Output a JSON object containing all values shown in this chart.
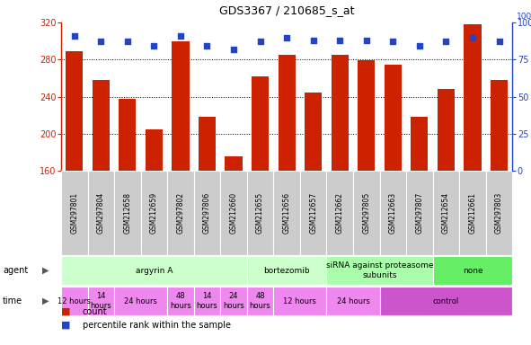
{
  "title": "GDS3367 / 210685_s_at",
  "samples": [
    "GSM297801",
    "GSM297804",
    "GSM212658",
    "GSM212659",
    "GSM297802",
    "GSM297806",
    "GSM212660",
    "GSM212655",
    "GSM212656",
    "GSM212657",
    "GSM212662",
    "GSM297805",
    "GSM212663",
    "GSM297807",
    "GSM212654",
    "GSM212661",
    "GSM297803"
  ],
  "counts": [
    289,
    258,
    238,
    205,
    300,
    218,
    176,
    262,
    285,
    244,
    285,
    279,
    274,
    218,
    248,
    318,
    258
  ],
  "percentiles": [
    91,
    87,
    87,
    84,
    91,
    84,
    82,
    87,
    90,
    88,
    88,
    88,
    87,
    84,
    87,
    90,
    87
  ],
  "ylim_left": [
    160,
    320
  ],
  "ylim_right": [
    0,
    100
  ],
  "yticks_left": [
    160,
    200,
    240,
    280,
    320
  ],
  "yticks_right": [
    0,
    25,
    50,
    75,
    100
  ],
  "bar_color": "#cc2200",
  "dot_color": "#2244cc",
  "agent_groups": [
    {
      "label": "argyrin A",
      "start": 0,
      "end": 6,
      "color": "#ccffcc"
    },
    {
      "label": "bortezomib",
      "start": 7,
      "end": 9,
      "color": "#ccffcc"
    },
    {
      "label": "siRNA against proteasome\nsubunits",
      "start": 10,
      "end": 13,
      "color": "#aaffaa"
    },
    {
      "label": "none",
      "start": 14,
      "end": 16,
      "color": "#66ee66"
    }
  ],
  "time_groups": [
    {
      "label": "12 hours",
      "start": 0,
      "end": 0,
      "color": "#ee88ee"
    },
    {
      "label": "14\nhours",
      "start": 1,
      "end": 1,
      "color": "#ee88ee"
    },
    {
      "label": "24 hours",
      "start": 2,
      "end": 3,
      "color": "#ee88ee"
    },
    {
      "label": "48\nhours",
      "start": 4,
      "end": 4,
      "color": "#ee88ee"
    },
    {
      "label": "14\nhours",
      "start": 5,
      "end": 5,
      "color": "#ee88ee"
    },
    {
      "label": "24\nhours",
      "start": 6,
      "end": 6,
      "color": "#ee88ee"
    },
    {
      "label": "48\nhours",
      "start": 7,
      "end": 7,
      "color": "#ee88ee"
    },
    {
      "label": "12 hours",
      "start": 8,
      "end": 9,
      "color": "#ee88ee"
    },
    {
      "label": "24 hours",
      "start": 10,
      "end": 11,
      "color": "#ee88ee"
    },
    {
      "label": "control",
      "start": 12,
      "end": 16,
      "color": "#cc55cc"
    }
  ],
  "sample_bg": "#cccccc",
  "background_color": "#ffffff",
  "grid_dotted_color": "#333333"
}
